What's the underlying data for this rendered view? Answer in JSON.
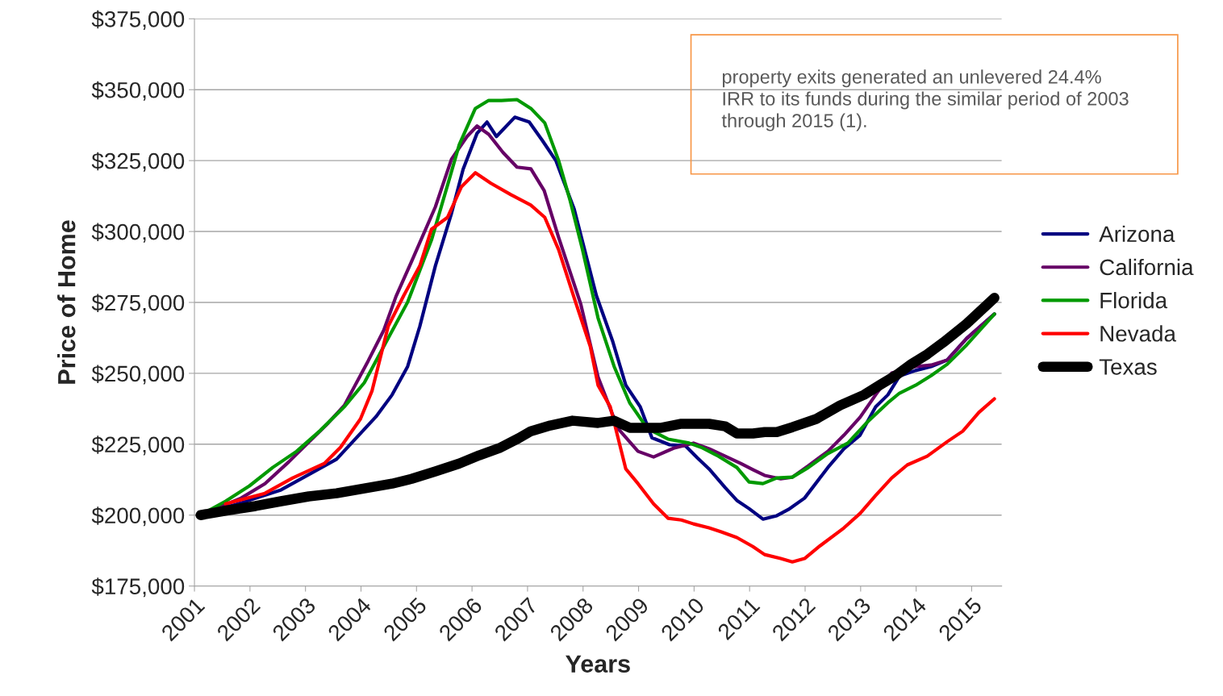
{
  "chart_data": {
    "type": "line",
    "xlabel": "Years",
    "ylabel": "Price of Home",
    "annotations": [
      "property exits generated an unlevered 24.4% IRR to its funds during the similar period of 2003 through 2015 (1)."
    ],
    "xlim": [
      2001,
      2015.54
    ],
    "xticks": [
      2001,
      2002,
      2003,
      2004,
      2005,
      2006,
      2007,
      2008,
      2009,
      2010,
      2011,
      2012,
      2013,
      2014,
      2015
    ],
    "ylim": [
      175000,
      375000
    ],
    "yticks": [
      {
        "value": 175000,
        "label": "$175,000"
      },
      {
        "value": 200000,
        "label": "$200,000"
      },
      {
        "value": 225000,
        "label": "$225,000"
      },
      {
        "value": 250000,
        "label": "$250,000"
      },
      {
        "value": 275000,
        "label": "$275,000"
      },
      {
        "value": 300000,
        "label": "$300,000"
      },
      {
        "value": 325000,
        "label": "$325,000"
      },
      {
        "value": 350000,
        "label": "$350,000"
      },
      {
        "value": 375000,
        "label": "$375,000"
      }
    ],
    "grid": "y",
    "legend": "right",
    "marker": "none",
    "line_style": "solid",
    "series": [
      {
        "name": "Arizona",
        "color": "#000080",
        "x": [
          2001.11,
          2001.84,
          2002.56,
          2003.56,
          2004.27,
          2004.56,
          2004.84,
          2005.06,
          2005.34,
          2005.63,
          2005.84,
          2006.09,
          2006.27,
          2006.44,
          2006.77,
          2007.03,
          2007.27,
          2007.51,
          2007.84,
          2008.24,
          2008.53,
          2008.77,
          2009.03,
          2009.24,
          2009.56,
          2009.84,
          2010.06,
          2010.27,
          2010.56,
          2010.77,
          2010.99,
          2011.24,
          2011.49,
          2011.7,
          2011.99,
          2012.41,
          2012.7,
          2012.99,
          2013.27,
          2013.49,
          2013.7,
          2013.99,
          2014.27,
          2014.56,
          2014.91,
          2015.41
        ],
        "values": [
          200000,
          204300,
          208900,
          219700,
          234700,
          242400,
          252400,
          266600,
          287900,
          306400,
          322000,
          334600,
          338600,
          333500,
          340300,
          338600,
          332000,
          325000,
          307900,
          277400,
          261500,
          245800,
          238200,
          227300,
          224800,
          224500,
          220200,
          216300,
          209700,
          205200,
          202300,
          198600,
          199800,
          202000,
          206000,
          216800,
          223400,
          228200,
          238200,
          242400,
          249000,
          251000,
          252400,
          254700,
          262300,
          270900
        ]
      },
      {
        "name": "California",
        "color": "#660066",
        "x": [
          2001.11,
          2001.84,
          2002.27,
          2002.7,
          2003.41,
          2003.7,
          2004.13,
          2004.41,
          2004.63,
          2004.91,
          2005.34,
          2005.63,
          2005.91,
          2006.09,
          2006.3,
          2006.56,
          2006.81,
          2007.06,
          2007.3,
          2007.56,
          2007.96,
          2008.27,
          2008.63,
          2008.99,
          2009.27,
          2009.63,
          2009.99,
          2010.27,
          2010.56,
          2010.84,
          2011.06,
          2011.27,
          2011.56,
          2011.77,
          2012.06,
          2012.41,
          2012.7,
          2012.99,
          2013.27,
          2013.56,
          2013.99,
          2014.27,
          2014.56,
          2014.91,
          2015.41
        ],
        "values": [
          200000,
          206000,
          211100,
          218800,
          232500,
          238700,
          254400,
          265200,
          277100,
          289400,
          308700,
          325500,
          333500,
          337200,
          334300,
          327800,
          322700,
          322100,
          314400,
          297900,
          274300,
          248700,
          230500,
          222500,
          220500,
          223600,
          225400,
          223400,
          220800,
          218200,
          216000,
          214000,
          212800,
          213400,
          217400,
          222500,
          228200,
          234500,
          242400,
          250100,
          252400,
          252900,
          254700,
          262300,
          270900
        ]
      },
      {
        "name": "Florida",
        "color": "#009900",
        "x": [
          2001.11,
          2001.56,
          2001.99,
          2002.41,
          2002.84,
          2003.27,
          2003.7,
          2004.06,
          2004.41,
          2004.84,
          2005.27,
          2005.56,
          2005.77,
          2006.06,
          2006.3,
          2006.53,
          2006.81,
          2007.06,
          2007.31,
          2007.56,
          2007.77,
          2007.99,
          2008.27,
          2008.56,
          2008.84,
          2009.16,
          2009.53,
          2009.91,
          2010.13,
          2010.41,
          2010.77,
          2010.99,
          2011.24,
          2011.49,
          2011.77,
          2012.06,
          2012.41,
          2012.77,
          2013.13,
          2013.49,
          2013.7,
          2013.99,
          2014.27,
          2014.56,
          2014.91,
          2015.41
        ],
        "values": [
          200000,
          204900,
          210300,
          216800,
          222500,
          229900,
          238200,
          246700,
          259500,
          275100,
          297000,
          316400,
          330600,
          343400,
          346200,
          346200,
          346500,
          343400,
          338300,
          325000,
          310700,
          293600,
          269500,
          252400,
          239600,
          230500,
          226800,
          225400,
          223900,
          221100,
          216800,
          211700,
          211100,
          213100,
          213400,
          216800,
          221700,
          225400,
          233000,
          239600,
          243000,
          245800,
          249200,
          253200,
          260000,
          270900
        ]
      },
      {
        "name": "Nevada",
        "color": "#ff0000",
        "x": [
          2001.56,
          2002.27,
          2002.77,
          2003.34,
          2003.63,
          2003.99,
          2004.2,
          2004.49,
          2004.77,
          2005.06,
          2005.27,
          2005.56,
          2005.81,
          2006.06,
          2006.34,
          2006.7,
          2007.06,
          2007.31,
          2007.56,
          2007.84,
          2008.13,
          2008.27,
          2008.49,
          2008.77,
          2008.99,
          2009.27,
          2009.53,
          2009.77,
          2009.99,
          2010.27,
          2010.49,
          2010.77,
          2011.06,
          2011.27,
          2011.56,
          2011.77,
          2011.99,
          2012.27,
          2012.7,
          2012.99,
          2013.27,
          2013.56,
          2013.84,
          2014.2,
          2014.56,
          2014.84,
          2015.13,
          2015.41
        ],
        "values": [
          204000,
          207700,
          213100,
          218200,
          223900,
          233900,
          243900,
          266600,
          277400,
          287900,
          300800,
          305000,
          315800,
          320700,
          317000,
          313000,
          309300,
          305000,
          293600,
          276600,
          259500,
          245800,
          238200,
          216300,
          211100,
          204000,
          198900,
          198300,
          196900,
          195500,
          194100,
          192100,
          188900,
          186100,
          184700,
          183500,
          184700,
          189200,
          195500,
          200600,
          206900,
          213100,
          217700,
          220800,
          225900,
          229600,
          236200,
          241000
        ]
      },
      {
        "name": "Texas",
        "color": "#000000",
        "x": [
          2001.11,
          2001.6,
          2002.1,
          2002.56,
          2003.06,
          2003.56,
          2004.06,
          2004.56,
          2004.91,
          2005.34,
          2005.77,
          2006.13,
          2006.49,
          2006.84,
          2007.06,
          2007.41,
          2007.81,
          2008.27,
          2008.56,
          2008.84,
          2009.41,
          2009.77,
          2010.27,
          2010.56,
          2010.77,
          2011.06,
          2011.27,
          2011.49,
          2011.77,
          2012.2,
          2012.63,
          2013.06,
          2013.34,
          2013.63,
          2013.91,
          2014.2,
          2014.49,
          2014.91,
          2015.41
        ],
        "values": [
          200000,
          201700,
          203200,
          204900,
          206600,
          207700,
          209400,
          211100,
          212800,
          215400,
          218200,
          221100,
          223600,
          227100,
          229600,
          231600,
          233300,
          232500,
          233300,
          230800,
          230800,
          232200,
          232200,
          231300,
          228800,
          228800,
          229300,
          229300,
          231000,
          233900,
          238700,
          242400,
          245800,
          249200,
          253200,
          256700,
          260900,
          267500,
          276600
        ]
      }
    ]
  }
}
